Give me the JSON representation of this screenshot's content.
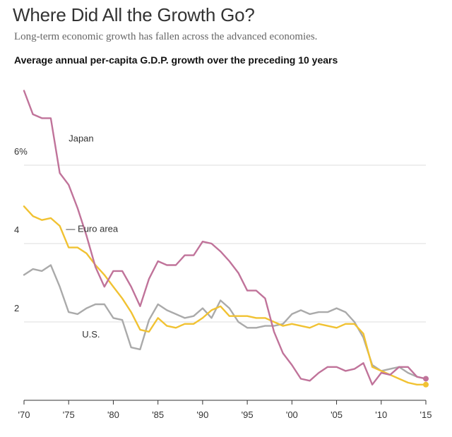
{
  "header": {
    "title": "Where Did All the Growth Go?",
    "subtitle": "Long-term economic growth has fallen across the advanced economies.",
    "chart_heading": "Average annual per-capita G.D.P. growth over the preceding 10 years"
  },
  "colors": {
    "japan": "#c0739a",
    "euro": "#f1c232",
    "us": "#aaaaaa",
    "grid": "#dddddd",
    "axis": "#333333",
    "text": "#333333"
  },
  "chart_data": {
    "type": "line",
    "title": "Average annual per-capita G.D.P. growth over the preceding 10 years",
    "xlabel": "",
    "ylabel": "",
    "xlim": [
      1970,
      2015
    ],
    "ylim": [
      0,
      8
    ],
    "y_ticks": [
      {
        "value": 2,
        "label": "2"
      },
      {
        "value": 4,
        "label": "4"
      },
      {
        "value": 6,
        "label": "6%"
      }
    ],
    "x_ticks": [
      {
        "value": 1970,
        "label": "'70"
      },
      {
        "value": 1975,
        "label": "'75"
      },
      {
        "value": 1980,
        "label": "'80"
      },
      {
        "value": 1985,
        "label": "'85"
      },
      {
        "value": 1990,
        "label": "'90"
      },
      {
        "value": 1995,
        "label": "'95"
      },
      {
        "value": 2000,
        "label": "'00"
      },
      {
        "value": 2005,
        "label": "'05"
      },
      {
        "value": 2010,
        "label": "'10"
      },
      {
        "value": 2015,
        "label": "'15"
      }
    ],
    "x": [
      1970,
      1971,
      1972,
      1973,
      1974,
      1975,
      1976,
      1977,
      1978,
      1979,
      1980,
      1981,
      1982,
      1983,
      1984,
      1985,
      1986,
      1987,
      1988,
      1989,
      1990,
      1991,
      1992,
      1993,
      1994,
      1995,
      1996,
      1997,
      1998,
      1999,
      2000,
      2001,
      2002,
      2003,
      2004,
      2005,
      2006,
      2007,
      2008,
      2009,
      2010,
      2011,
      2012,
      2013,
      2014,
      2015
    ],
    "series": [
      {
        "key": "japan",
        "name": "Japan",
        "values": [
          7.9,
          7.3,
          7.2,
          7.2,
          5.8,
          5.5,
          4.9,
          4.2,
          3.4,
          2.9,
          3.3,
          3.3,
          2.9,
          2.4,
          3.1,
          3.55,
          3.45,
          3.45,
          3.7,
          3.7,
          4.05,
          4.0,
          3.8,
          3.55,
          3.25,
          2.8,
          2.8,
          2.6,
          1.75,
          1.2,
          0.9,
          0.55,
          0.5,
          0.7,
          0.85,
          0.85,
          0.75,
          0.8,
          0.95,
          0.4,
          0.7,
          0.65,
          0.85,
          0.85,
          0.6,
          0.55
        ]
      },
      {
        "key": "euro",
        "name": "Euro area",
        "values": [
          4.95,
          4.7,
          4.6,
          4.65,
          4.45,
          3.9,
          3.9,
          3.75,
          3.45,
          3.2,
          2.9,
          2.6,
          2.25,
          1.8,
          1.75,
          2.1,
          1.9,
          1.85,
          1.95,
          1.95,
          2.1,
          2.3,
          2.4,
          2.15,
          2.15,
          2.15,
          2.1,
          2.1,
          2.0,
          1.9,
          1.95,
          1.9,
          1.85,
          1.95,
          1.9,
          1.85,
          1.95,
          1.95,
          1.7,
          0.85,
          0.75,
          0.65,
          0.55,
          0.45,
          0.4,
          0.4
        ]
      },
      {
        "key": "us",
        "name": "U.S.",
        "values": [
          3.2,
          3.35,
          3.3,
          3.45,
          2.9,
          2.25,
          2.2,
          2.35,
          2.45,
          2.45,
          2.1,
          2.05,
          1.35,
          1.3,
          2.05,
          2.45,
          2.3,
          2.2,
          2.1,
          2.15,
          2.35,
          2.1,
          2.55,
          2.35,
          2.0,
          1.85,
          1.85,
          1.9,
          1.9,
          1.95,
          2.2,
          2.3,
          2.2,
          2.25,
          2.25,
          2.35,
          2.25,
          2.0,
          1.6,
          0.9,
          0.75,
          0.8,
          0.85,
          0.7,
          0.6,
          0.55
        ]
      }
    ],
    "annotations": [
      {
        "series": "japan",
        "text": "Japan",
        "x": 1975,
        "y": 6.6
      },
      {
        "series": "euro",
        "text": "— Euro area",
        "x": 1974.7,
        "y": 4.3
      },
      {
        "series": "us",
        "text": "U.S.",
        "x": 1976.5,
        "y": 1.6
      }
    ]
  }
}
